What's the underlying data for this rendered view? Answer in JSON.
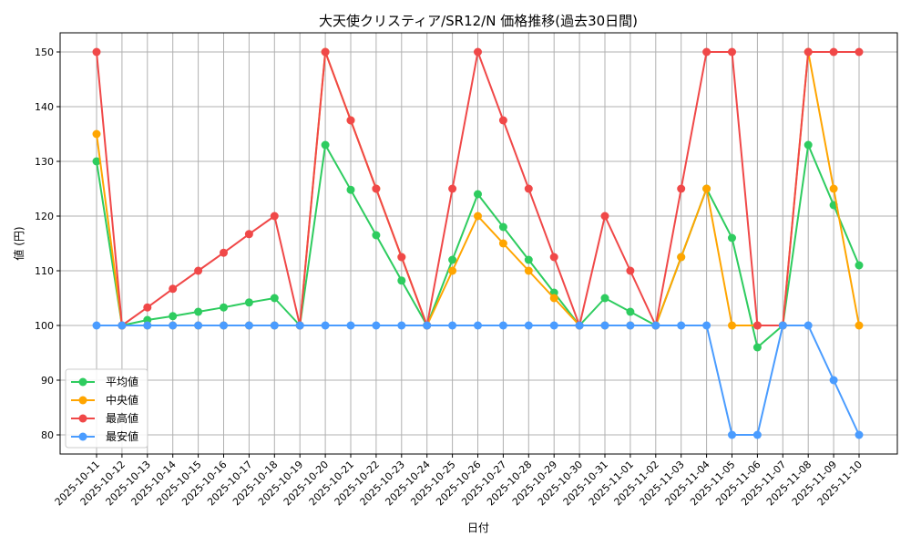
{
  "chart_data": {
    "type": "line",
    "title": "大天使クリスティア/SR12/N 価格推移(過去30日間)",
    "xlabel": "日付",
    "ylabel": "値 (円)",
    "ylim": [
      76.5,
      153.5
    ],
    "yticks": [
      80,
      90,
      100,
      110,
      120,
      130,
      140,
      150
    ],
    "grid": true,
    "legend_position": "lower-left",
    "x": [
      "2025-10-11",
      "2025-10-12",
      "2025-10-13",
      "2025-10-14",
      "2025-10-15",
      "2025-10-16",
      "2025-10-17",
      "2025-10-18",
      "2025-10-19",
      "2025-10-20",
      "2025-10-21",
      "2025-10-22",
      "2025-10-23",
      "2025-10-24",
      "2025-10-25",
      "2025-10-26",
      "2025-10-27",
      "2025-10-28",
      "2025-10-29",
      "2025-10-30",
      "2025-10-31",
      "2025-11-01",
      "2025-11-02",
      "2025-11-03",
      "2025-11-04",
      "2025-11-05",
      "2025-11-06",
      "2025-11-07",
      "2025-11-08",
      "2025-11-09",
      "2025-11-10"
    ],
    "series": [
      {
        "name": "平均値",
        "color": "#2ecc5f",
        "values": [
          130,
          100,
          101,
          101.7,
          102.5,
          103.3,
          104.2,
          105,
          100,
          133,
          124.8,
          116.5,
          108.2,
          100,
          112,
          124,
          118,
          112,
          106,
          100,
          105,
          102.5,
          100,
          112.5,
          125,
          116,
          96,
          100,
          133,
          122,
          111
        ]
      },
      {
        "name": "中央値",
        "color": "#ffa500",
        "values": [
          135,
          100,
          100,
          100,
          100,
          100,
          100,
          100,
          100,
          150,
          137.5,
          125,
          112.5,
          100,
          110,
          120,
          115,
          110,
          105,
          100,
          100,
          100,
          100,
          112.5,
          125,
          100,
          100,
          100,
          150,
          125,
          100
        ]
      },
      {
        "name": "最高値",
        "color": "#f04848",
        "values": [
          150,
          100,
          103.3,
          106.7,
          110,
          113.3,
          116.7,
          120,
          100,
          150,
          137.5,
          125,
          112.5,
          100,
          125,
          150,
          137.5,
          125,
          112.5,
          100,
          120,
          110,
          100,
          125,
          150,
          150,
          100,
          100,
          150,
          150,
          150
        ]
      },
      {
        "name": "最安値",
        "color": "#4a9cff",
        "values": [
          100,
          100,
          100,
          100,
          100,
          100,
          100,
          100,
          100,
          100,
          100,
          100,
          100,
          100,
          100,
          100,
          100,
          100,
          100,
          100,
          100,
          100,
          100,
          100,
          100,
          80,
          80,
          100,
          100,
          90,
          80
        ]
      }
    ]
  }
}
